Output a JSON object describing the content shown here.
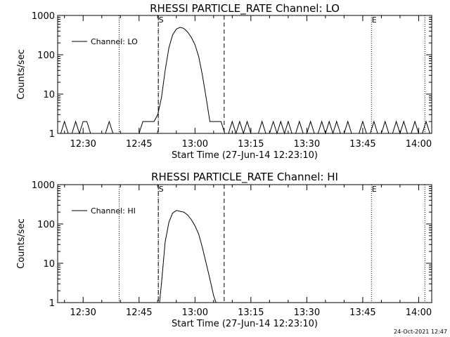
{
  "footer": {
    "timestamp": "24-Oct-2021 12:47"
  },
  "chart_data": [
    {
      "type": "line",
      "title": "RHESSI PARTICLE_RATE Channel: LO",
      "xlabel": "Start Time (27-Jun-14 12:23:10)",
      "ylabel": "Counts/sec",
      "y_scale": "log",
      "ylim": [
        1,
        1000
      ],
      "xlim": [
        "12:23:10",
        "14:03:30"
      ],
      "x_tick_labels": [
        "12:30",
        "12:45",
        "13:00",
        "13:15",
        "13:30",
        "13:45",
        "14:00"
      ],
      "y_tick_labels": [
        "1",
        "10",
        "100",
        "1000"
      ],
      "legend": {
        "position": "top-left",
        "entries": [
          "Channel: LO"
        ]
      },
      "markers": [
        {
          "label": "S",
          "x": "12:50:10"
        },
        {
          "label": "E",
          "x": "13:47:20"
        }
      ],
      "vlines_dotted": [
        "12:39:40",
        "12:50:10",
        "13:47:20",
        "14:01:40"
      ],
      "vlines_dashed": [
        "12:50:10",
        "13:07:50"
      ],
      "series": [
        {
          "name": "Channel: LO",
          "x": [
            "12:24:00",
            "12:25:00",
            "12:26:00",
            "12:27:00",
            "12:28:00",
            "12:29:00",
            "12:30:00",
            "12:31:00",
            "12:32:00",
            "12:33:00",
            "12:34:00",
            "12:35:00",
            "12:36:00",
            "12:37:00",
            "12:38:00",
            "12:39:00",
            "12:40:00",
            "12:41:00",
            "12:42:00",
            "12:43:00",
            "12:44:00",
            "12:45:00",
            "12:46:00",
            "12:47:00",
            "12:48:00",
            "12:49:00",
            "12:50:00",
            "12:51:00",
            "12:52:00",
            "12:53:00",
            "12:54:00",
            "12:55:00",
            "12:56:00",
            "12:57:00",
            "12:58:00",
            "12:59:00",
            "13:00:00",
            "13:01:00",
            "13:02:00",
            "13:03:00",
            "13:04:00",
            "13:05:00",
            "13:06:00",
            "13:07:00",
            "13:08:00",
            "13:09:00",
            "13:10:00",
            "13:11:00",
            "13:12:00",
            "13:13:00",
            "13:14:00",
            "13:15:00",
            "13:16:00",
            "13:17:00",
            "13:18:00",
            "13:19:00",
            "13:20:00",
            "13:21:00",
            "13:22:00",
            "13:23:00",
            "13:24:00",
            "13:25:00",
            "13:26:00",
            "13:27:00",
            "13:28:00",
            "13:29:00",
            "13:30:00",
            "13:31:00",
            "13:32:00",
            "13:33:00",
            "13:34:00",
            "13:35:00",
            "13:36:00",
            "13:37:00",
            "13:38:00",
            "13:39:00",
            "13:40:00",
            "13:41:00",
            "13:42:00",
            "13:43:00",
            "13:44:00",
            "13:45:00",
            "13:46:00",
            "13:47:00",
            "13:48:00",
            "13:49:00",
            "13:50:00",
            "13:51:00",
            "13:52:00",
            "13:53:00",
            "13:54:00",
            "13:55:00",
            "13:56:00",
            "13:57:00",
            "13:58:00",
            "13:59:00",
            "14:00:00",
            "14:01:00",
            "14:02:00",
            "14:03:00"
          ],
          "y": [
            1,
            2,
            1,
            1,
            2,
            1,
            2,
            2,
            1,
            1,
            1,
            1,
            1,
            2,
            1,
            1,
            1,
            1,
            1,
            1,
            1,
            1,
            2,
            2,
            2,
            2,
            3,
            8,
            40,
            150,
            320,
            450,
            500,
            470,
            380,
            280,
            180,
            90,
            30,
            8,
            2,
            2,
            2,
            2,
            1,
            1,
            2,
            1,
            2,
            1,
            2,
            1,
            1,
            1,
            2,
            1,
            1,
            2,
            1,
            2,
            1,
            2,
            1,
            1,
            2,
            1,
            1,
            2,
            1,
            1,
            2,
            1,
            2,
            1,
            2,
            1,
            1,
            2,
            1,
            1,
            1,
            2,
            1,
            1,
            2,
            1,
            1,
            2,
            1,
            1,
            2,
            1,
            2,
            1,
            1,
            2,
            1,
            1,
            2,
            1
          ]
        }
      ]
    },
    {
      "type": "line",
      "title": "RHESSI PARTICLE_RATE Channel: HI",
      "xlabel": "Start Time (27-Jun-14 12:23:10)",
      "ylabel": "Counts/sec",
      "y_scale": "log",
      "ylim": [
        1,
        1000
      ],
      "xlim": [
        "12:23:10",
        "14:03:30"
      ],
      "x_tick_labels": [
        "12:30",
        "12:45",
        "13:00",
        "13:15",
        "13:30",
        "13:45",
        "14:00"
      ],
      "y_tick_labels": [
        "1",
        "10",
        "100",
        "1000"
      ],
      "legend": {
        "position": "top-left",
        "entries": [
          "Channel: HI"
        ]
      },
      "markers": [
        {
          "label": "S",
          "x": "12:50:10"
        },
        {
          "label": "E",
          "x": "13:47:20"
        }
      ],
      "vlines_dotted": [
        "12:39:40",
        "12:50:10",
        "13:47:20",
        "14:01:40"
      ],
      "vlines_dashed": [
        "12:50:10",
        "13:07:50"
      ],
      "series": [
        {
          "name": "Channel: HI",
          "x": [
            "12:50:30",
            "12:51:00",
            "12:51:30",
            "12:52:00",
            "12:53:00",
            "12:54:00",
            "12:55:00",
            "12:56:00",
            "12:57:00",
            "12:58:00",
            "12:59:00",
            "13:00:00",
            "13:01:00",
            "13:02:00",
            "13:03:00",
            "13:04:00",
            "13:05:00",
            "13:05:40"
          ],
          "y": [
            1,
            3,
            10,
            35,
            110,
            190,
            220,
            210,
            200,
            170,
            130,
            90,
            55,
            25,
            10,
            4,
            1.5,
            1
          ]
        }
      ]
    }
  ]
}
